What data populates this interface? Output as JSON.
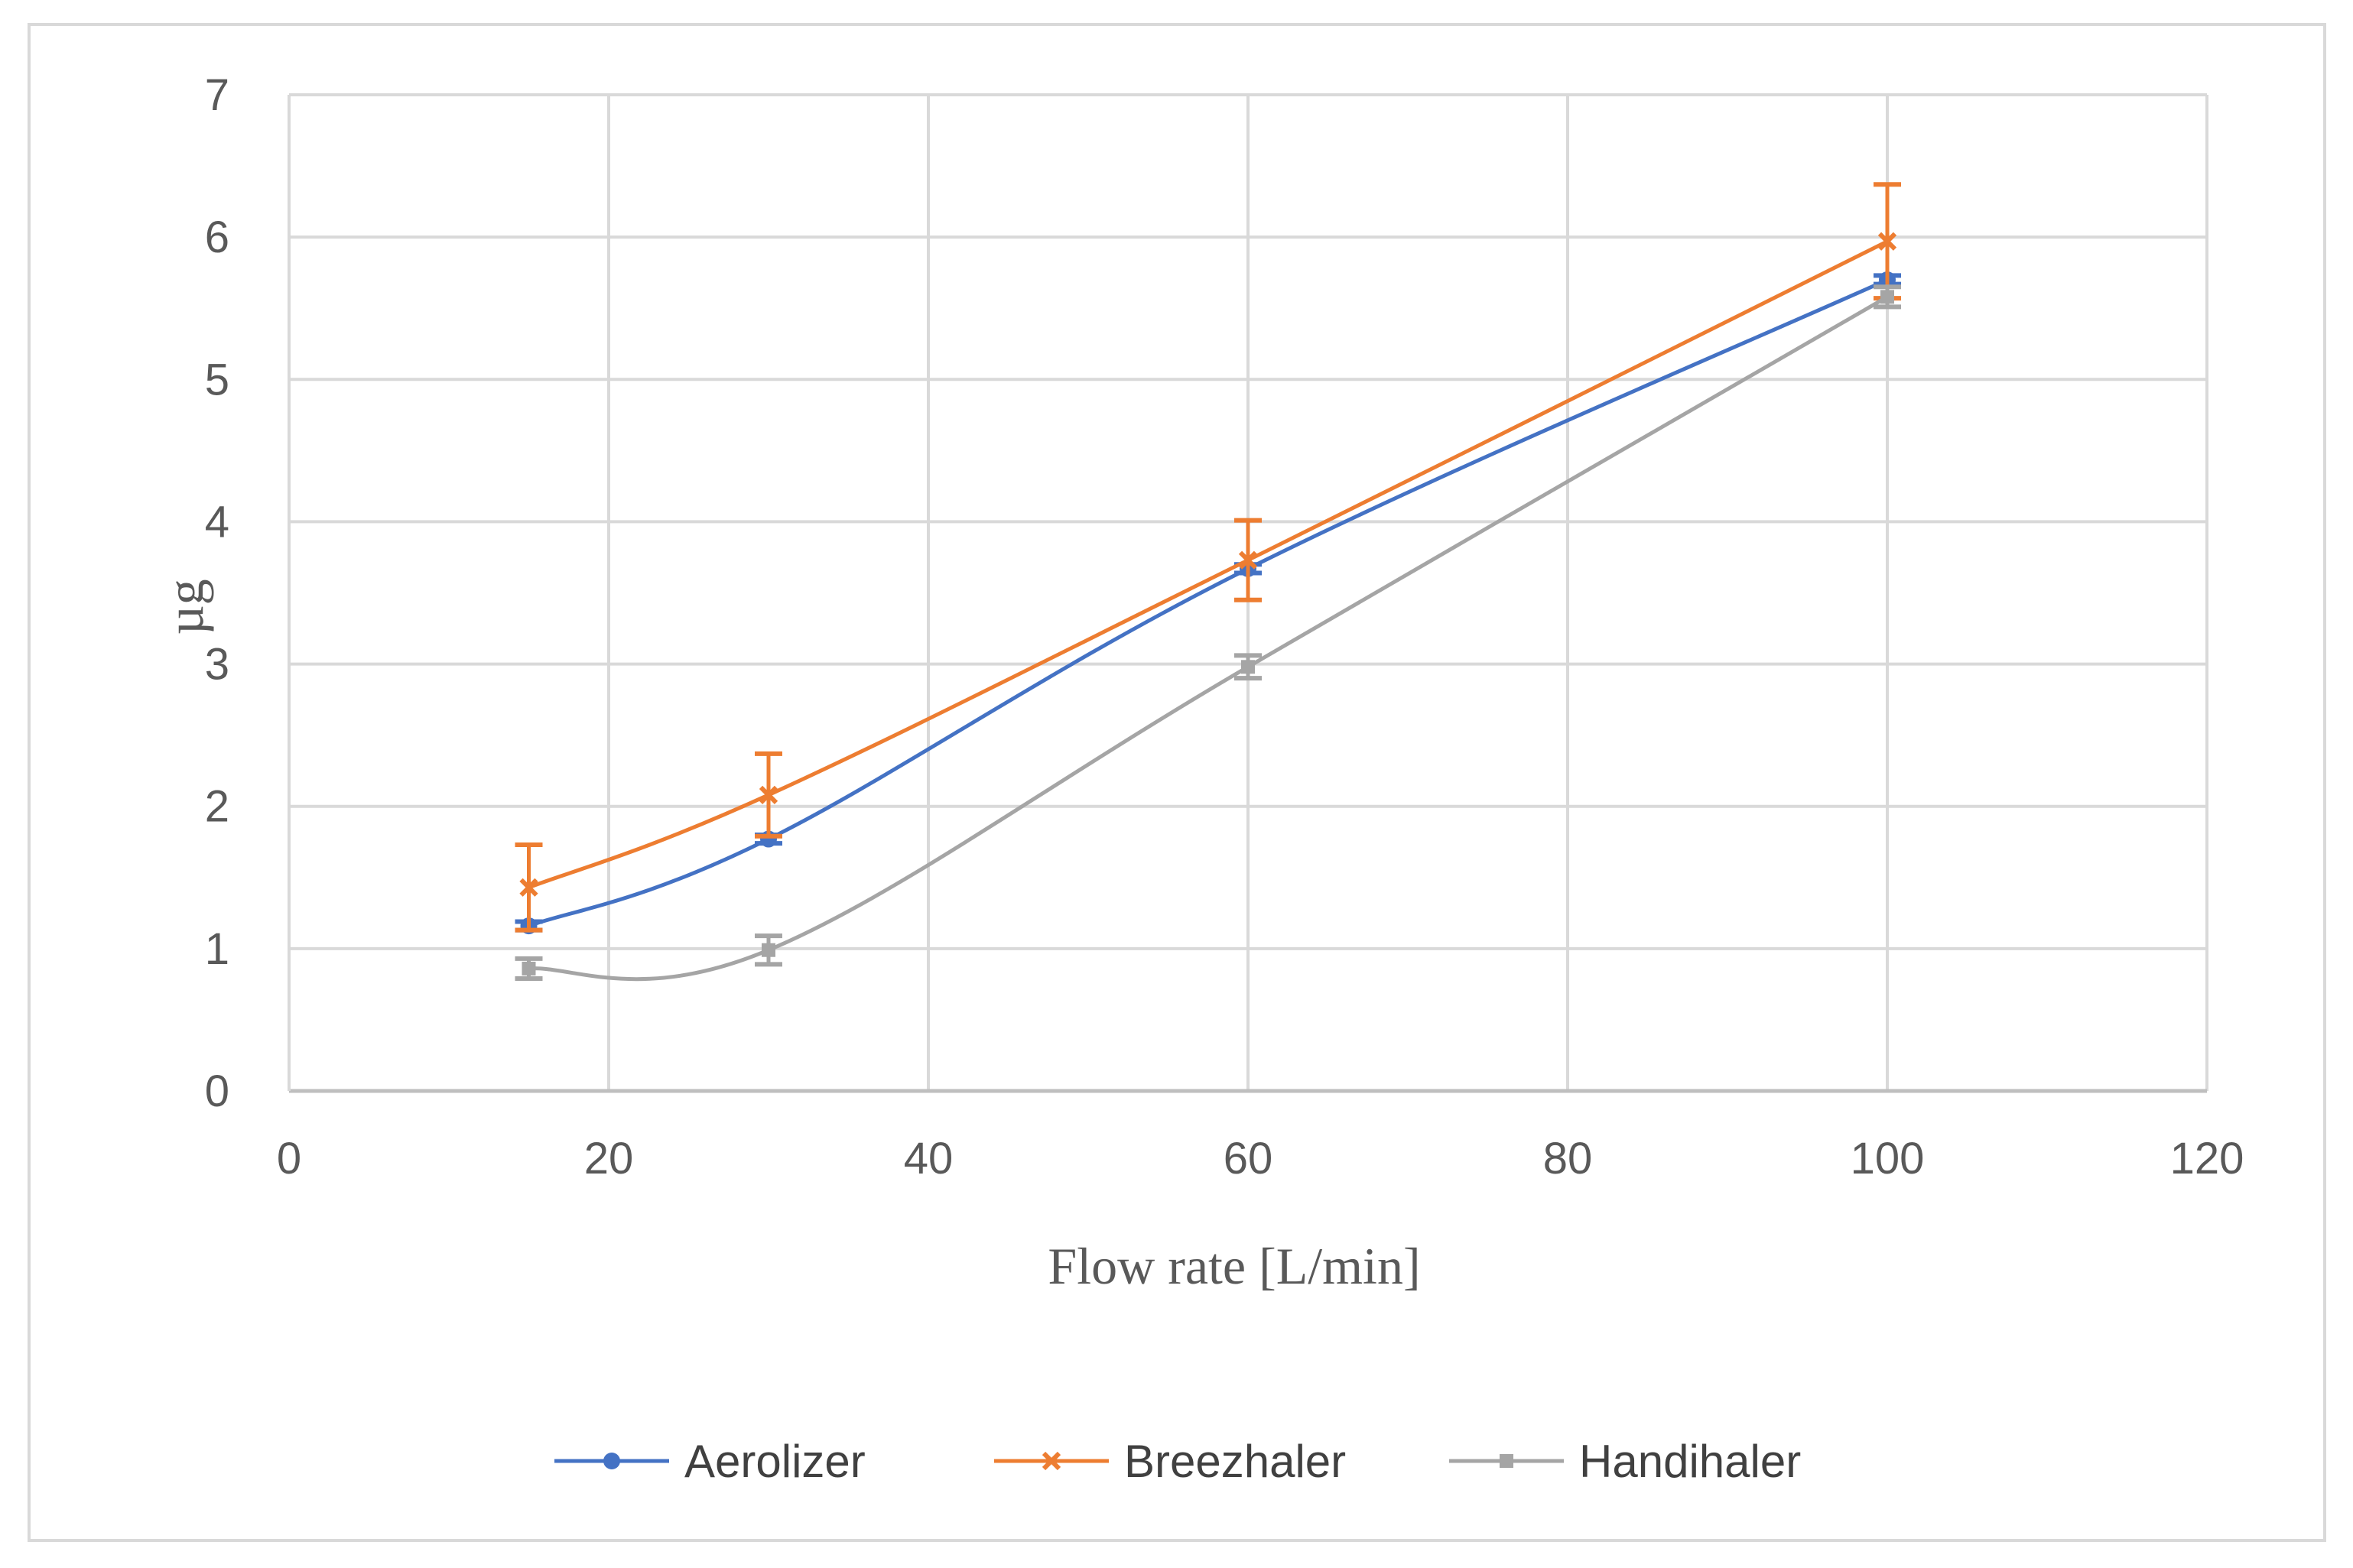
{
  "chart_data": {
    "type": "line",
    "title": "",
    "xlabel": "Flow rate [L/min]",
    "ylabel": "µg",
    "xlim": [
      0,
      120
    ],
    "ylim": [
      0,
      7
    ],
    "xticks": [
      0,
      20,
      40,
      60,
      80,
      100,
      120
    ],
    "yticks": [
      0,
      1,
      2,
      3,
      4,
      5,
      6,
      7
    ],
    "grid": true,
    "legend_position": "bottom",
    "series": [
      {
        "name": "Aerolizer",
        "color": "#4472c4",
        "marker": "circle",
        "smooth": true,
        "x": [
          15,
          30,
          60,
          100
        ],
        "y": [
          1.16,
          1.77,
          3.67,
          5.7
        ],
        "err": [
          0.03,
          0.03,
          0.03,
          0.03
        ]
      },
      {
        "name": "Breezhaler",
        "color": "#ed7d31",
        "marker": "x",
        "smooth": true,
        "x": [
          15,
          30,
          60,
          100
        ],
        "y": [
          1.43,
          2.08,
          3.73,
          5.97
        ],
        "err": [
          0.3,
          0.29,
          0.28,
          0.4
        ]
      },
      {
        "name": "Handihaler",
        "color": "#a5a5a5",
        "marker": "square",
        "smooth": true,
        "x": [
          15,
          30,
          60,
          100
        ],
        "y": [
          0.86,
          0.99,
          2.98,
          5.58
        ],
        "err": [
          0.07,
          0.1,
          0.08,
          0.07
        ]
      }
    ]
  }
}
